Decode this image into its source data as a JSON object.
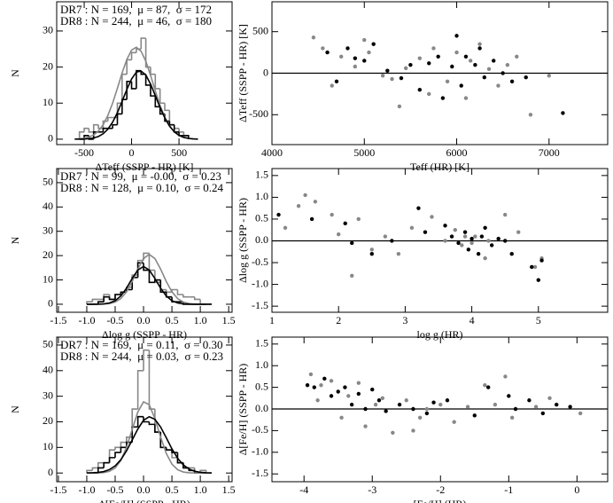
{
  "chart_data": [
    {
      "type": "histogram",
      "xlabel": "ΔTeff (SSPP - HR) [K]",
      "ylabel": "N",
      "annotations": [
        {
          "text": "DR7 : N = 169,  μ = 87,  σ = 172",
          "color": "#000000"
        },
        {
          "text": "DR8 : N = 244,  μ = 46,  σ = 180",
          "color": "#888888"
        }
      ],
      "bins": [
        -550,
        -500,
        -450,
        -400,
        -350,
        -300,
        -250,
        -200,
        -150,
        -100,
        -50,
        0,
        50,
        100,
        150,
        200,
        250,
        300,
        350,
        400,
        450,
        500,
        550,
        600
      ],
      "series": [
        {
          "color": "#888888",
          "values": [
            2,
            3,
            2,
            4,
            3,
            5,
            6,
            6,
            10,
            18,
            22,
            24,
            25,
            28,
            20,
            18,
            14,
            10,
            8,
            4,
            3,
            2,
            1
          ]
        },
        {
          "color": "#000000",
          "values": [
            0,
            1,
            0,
            2,
            2,
            3,
            3,
            4,
            7,
            11,
            16,
            14,
            19,
            18,
            15,
            12,
            9,
            7,
            5,
            4,
            2,
            1,
            1
          ]
        }
      ],
      "fits": [
        {
          "color": "#888888",
          "x": [
            -600,
            -550,
            -500,
            -450,
            -400,
            -350,
            -300,
            -250,
            -200,
            -150,
            -100,
            -50,
            0,
            50,
            100,
            150,
            200,
            250,
            300,
            350,
            400,
            450,
            500,
            550,
            600,
            650,
            700
          ],
          "values": [
            0.04,
            0.11,
            0.26,
            0.57,
            1.18,
            2.27,
            4.02,
            6.6,
            10,
            14.1,
            18.4,
            22.1,
            24.7,
            25.5,
            24.4,
            21.6,
            17.7,
            13.4,
            9.4,
            6.1,
            3.7,
            2.05,
            1.06,
            0.5,
            0.22,
            0.09,
            0.03
          ]
        },
        {
          "color": "#000000",
          "x": [
            -600,
            -550,
            -500,
            -450,
            -400,
            -350,
            -300,
            -250,
            -200,
            -150,
            -100,
            -50,
            0,
            50,
            100,
            150,
            200,
            250,
            300,
            350,
            400,
            450,
            500,
            550,
            600,
            650,
            700
          ],
          "values": [
            0.01,
            0.02,
            0.06,
            0.15,
            0.34,
            0.75,
            1.51,
            2.79,
            4.72,
            7.35,
            10.5,
            13.8,
            16.7,
            18.6,
            18.9,
            17.8,
            15.3,
            12.1,
            8.82,
            5.9,
            3.63,
            2.05,
            1.06,
            0.51,
            0.22,
            0.09,
            0.03
          ]
        }
      ],
      "xlim": [
        -790,
        1060
      ],
      "xticks": [
        -500,
        0,
        500
      ],
      "ylim": [
        -1.5,
        38.1
      ],
      "yticks": [
        0,
        10,
        20,
        30
      ]
    },
    {
      "type": "scatter",
      "xlabel": "Teff (HR) [K]",
      "ylabel": "ΔTeff (SSPP - HR) [K]",
      "reference_line": 0,
      "series": [
        {
          "color": "#888888",
          "x": [
            4450,
            4550,
            4650,
            4750,
            4900,
            5000,
            5050,
            5200,
            5300,
            5380,
            5450,
            5600,
            5700,
            5750,
            5900,
            6000,
            6100,
            6150,
            6250,
            6350,
            6450,
            6550,
            6650,
            6800,
            7000
          ],
          "values": [
            430,
            300,
            -150,
            200,
            80,
            400,
            250,
            -30,
            -70,
            -400,
            60,
            180,
            -250,
            300,
            -100,
            250,
            -300,
            150,
            350,
            50,
            -150,
            100,
            200,
            -500,
            -30
          ]
        },
        {
          "color": "#000000",
          "x": [
            4600,
            4700,
            4820,
            4900,
            5000,
            5100,
            5250,
            5400,
            5500,
            5600,
            5700,
            5800,
            5850,
            5950,
            6000,
            6050,
            6100,
            6200,
            6250,
            6300,
            6400,
            6500,
            6600,
            6750,
            7150
          ],
          "values": [
            250,
            -100,
            300,
            180,
            150,
            350,
            30,
            -60,
            100,
            -200,
            120,
            200,
            -300,
            80,
            450,
            -150,
            200,
            100,
            300,
            -50,
            150,
            0,
            -100,
            -50,
            -480
          ]
        }
      ],
      "xlim": [
        4000,
        7635
      ],
      "xticks": [
        4000,
        5000,
        6000,
        7000
      ],
      "ylim": [
        -860,
        860
      ],
      "yticks": [
        -500,
        0,
        500
      ]
    },
    {
      "type": "histogram",
      "xlabel": "Δlog g (SSPP - HR)",
      "ylabel": "N",
      "annotations": [
        {
          "text": "DR7 : N = 99,  μ = -0.00,  σ = 0.23",
          "color": "#000000"
        },
        {
          "text": "DR8 : N = 128,  μ = 0.10,  σ = 0.24",
          "color": "#888888"
        }
      ],
      "bins": [
        -1.0,
        -0.9,
        -0.8,
        -0.7,
        -0.6,
        -0.5,
        -0.4,
        -0.3,
        -0.2,
        -0.1,
        0,
        0.1,
        0.2,
        0.3,
        0.4,
        0.5,
        0.6,
        0.7,
        0.8,
        0.9,
        1.0,
        1.1
      ],
      "series": [
        {
          "color": "#888888",
          "values": [
            1,
            2,
            2,
            4,
            2,
            4,
            5,
            7,
            12,
            18,
            21,
            14,
            9,
            6,
            5,
            6,
            4,
            3,
            3,
            2,
            0
          ]
        },
        {
          "color": "#000000",
          "values": [
            0,
            0,
            1,
            3,
            2,
            4,
            5,
            6,
            11,
            17,
            14,
            9,
            10,
            5,
            3,
            1,
            1,
            0,
            0,
            0,
            0
          ]
        }
      ],
      "fits": [
        {
          "color": "#888888",
          "x": [
            -1.0,
            -0.9,
            -0.8,
            -0.7,
            -0.6,
            -0.5,
            -0.4,
            -0.3,
            -0.2,
            -0.1,
            0,
            0.1,
            0.2,
            0.3,
            0.4,
            0.5,
            0.6,
            0.7,
            0.8,
            0.9,
            1.0,
            1.1,
            1.2
          ],
          "values": [
            0,
            0,
            0.02,
            0.08,
            0.29,
            0.9,
            2.34,
            5.11,
            9.39,
            14.5,
            18.8,
            20.5,
            18.8,
            14.5,
            9.39,
            5.11,
            2.34,
            0.9,
            0.29,
            0.08,
            0.02,
            0,
            0
          ]
        },
        {
          "color": "#000000",
          "x": [
            -1.0,
            -0.9,
            -0.8,
            -0.7,
            -0.6,
            -0.5,
            -0.4,
            -0.3,
            -0.2,
            -0.1,
            0,
            0.1,
            0.2,
            0.3,
            0.4,
            0.5,
            0.6,
            0.7,
            0.8,
            0.9,
            1.0,
            1.1,
            1.2
          ],
          "values": [
            0,
            0.01,
            0.04,
            0.15,
            0.52,
            1.46,
            3.42,
            6.62,
            10.6,
            14.1,
            15.5,
            14.1,
            10.6,
            6.62,
            3.42,
            1.46,
            0.52,
            0.15,
            0.04,
            0.01,
            0,
            0,
            0
          ]
        }
      ],
      "xlim": [
        -1.53,
        1.56
      ],
      "xticks": [
        -1.5,
        {
          "value": -1,
          "label": "-1.0"
        },
        -0.5,
        {
          "value": 0,
          "label": "0.0"
        },
        0.5,
        {
          "value": 1,
          "label": "1.0"
        },
        1.5
      ],
      "ylim": [
        -3.3,
        55.8
      ],
      "yticks": [
        0,
        10,
        20,
        30,
        40,
        50
      ]
    },
    {
      "type": "scatter",
      "xlabel": "log g (HR)",
      "ylabel": "Δlog g (SSPP - HR)",
      "reference_line": 0,
      "series": [
        {
          "color": "#888888",
          "x": [
            1.2,
            1.4,
            1.5,
            1.65,
            1.9,
            2.0,
            2.2,
            2.3,
            2.5,
            2.7,
            2.9,
            3.1,
            3.4,
            3.6,
            3.75,
            3.85,
            3.9,
            4.0,
            4.05,
            4.2,
            4.25,
            4.5,
            4.7,
            4.95,
            5.05
          ],
          "values": [
            0.3,
            0.8,
            1.05,
            0.9,
            0.6,
            0.15,
            -0.8,
            0.5,
            -0.2,
            0.1,
            -0.3,
            0.3,
            0.55,
            0.0,
            0.25,
            -0.1,
            0.1,
            -0.05,
            0.1,
            -0.4,
            0.0,
            0.6,
            0.2,
            -0.6,
            -0.4
          ]
        },
        {
          "color": "#000000",
          "x": [
            1.1,
            1.6,
            2.1,
            2.2,
            2.5,
            2.8,
            3.2,
            3.3,
            3.6,
            3.7,
            3.8,
            3.9,
            3.95,
            4.0,
            4.1,
            4.15,
            4.2,
            4.3,
            4.4,
            4.5,
            4.6,
            4.9,
            5.0,
            5.05
          ],
          "values": [
            0.6,
            0.5,
            0.4,
            -0.05,
            -0.3,
            0.0,
            0.75,
            0.2,
            0.35,
            0.1,
            -0.05,
            0.2,
            -0.2,
            0.05,
            -0.3,
            0.1,
            0.3,
            -0.1,
            0.05,
            0.0,
            -0.3,
            -0.6,
            -0.9,
            -0.45
          ]
        }
      ],
      "xlim": [
        1,
        6.04
      ],
      "xticks": [
        1,
        2,
        3,
        4,
        5
      ],
      "ylim": [
        -1.64,
        1.66
      ],
      "yticks": [
        -1.5,
        {
          "value": -1,
          "label": "-1.0"
        },
        -0.5,
        {
          "value": 0,
          "label": "0.0"
        },
        0.5,
        {
          "value": 1,
          "label": "1.0"
        },
        1.5
      ]
    },
    {
      "type": "histogram",
      "xlabel": "Δ[Fe/H] (SSPP - HR)",
      "ylabel": "N",
      "annotations": [
        {
          "text": "DR7 : N = 169,  μ = 0.11,  σ = 0.30",
          "color": "#000000"
        },
        {
          "text": "DR8 : N = 244,  μ = 0.03,  σ = 0.23",
          "color": "#888888"
        }
      ],
      "bins": [
        -1.0,
        -0.9,
        -0.8,
        -0.7,
        -0.6,
        -0.5,
        -0.4,
        -0.3,
        -0.2,
        -0.1,
        0,
        0.1,
        0.2,
        0.3,
        0.4,
        0.5,
        0.6,
        0.7,
        0.8,
        0.9,
        1.0,
        1.1
      ],
      "series": [
        {
          "color": "#888888",
          "values": [
            1,
            2,
            4,
            4,
            9,
            10,
            12,
            14,
            25,
            40,
            48,
            25,
            16,
            10,
            9,
            6,
            4,
            2,
            2,
            0,
            1
          ]
        },
        {
          "color": "#000000",
          "values": [
            0,
            0,
            2,
            4,
            6,
            8,
            10,
            12,
            18,
            22,
            20,
            19,
            16,
            10,
            9,
            8,
            4,
            2,
            1,
            0,
            0
          ]
        }
      ],
      "fits": [
        {
          "color": "#888888",
          "x": [
            -1.0,
            -0.9,
            -0.8,
            -0.7,
            -0.6,
            -0.5,
            -0.4,
            -0.3,
            -0.2,
            -0.1,
            0,
            0.1,
            0.2,
            0.3,
            0.4,
            0.5,
            0.6,
            0.7,
            0.8,
            0.9,
            1.0,
            1.1,
            1.2
          ],
          "values": [
            0,
            0.01,
            0.04,
            0.18,
            0.66,
            1.97,
            4.88,
            10,
            17,
            23.9,
            27.8,
            26.7,
            21.3,
            14.1,
            7.67,
            3.47,
            1.3,
            0.4,
            0.1,
            0.02,
            0,
            0,
            0
          ]
        },
        {
          "color": "#000000",
          "x": [
            -1.0,
            -0.9,
            -0.8,
            -0.7,
            -0.6,
            -0.5,
            -0.4,
            -0.3,
            -0.2,
            -0.1,
            0,
            0.1,
            0.2,
            0.3,
            0.4,
            0.5,
            0.6,
            0.7,
            0.8,
            0.9,
            1.0,
            1.1,
            1.2
          ],
          "values": [
            0.02,
            0.08,
            0.22,
            0.57,
            1.34,
            2.79,
            5.19,
            8.65,
            12.9,
            17.2,
            20.6,
            22,
            21,
            18,
            13.8,
            9.45,
            5.8,
            3.18,
            1.56,
            0.69,
            0.27,
            0.09,
            0.03
          ]
        }
      ],
      "xlim": [
        -1.53,
        1.56
      ],
      "xticks": [
        -1.5,
        {
          "value": -1,
          "label": "-1.0"
        },
        -0.5,
        {
          "value": 0,
          "label": "0.0"
        },
        0.5,
        {
          "value": 1,
          "label": "1.0"
        },
        1.5
      ],
      "ylim": [
        -3.4,
        53.1
      ],
      "yticks": [
        0,
        10,
        20,
        30,
        40,
        50
      ]
    },
    {
      "type": "scatter",
      "xlabel": "[Fe/H] (HR)",
      "ylabel": "Δ[Fe/H] (SSPP - HR)",
      "reference_line": 0,
      "series": [
        {
          "color": "#888888",
          "x": [
            -3.9,
            -3.8,
            -3.75,
            -3.6,
            -3.45,
            -3.35,
            -3.2,
            -3.1,
            -2.95,
            -2.85,
            -2.7,
            -2.5,
            -2.4,
            -2.3,
            -2.2,
            -2.0,
            -1.8,
            -1.6,
            -1.35,
            -1.2,
            -1.05,
            -0.95,
            -0.6,
            -0.4,
            0.05
          ],
          "values": [
            0.8,
            0.2,
            0.55,
            0.65,
            -0.2,
            0.3,
            0.6,
            -0.4,
            0.1,
            0.25,
            -0.55,
            0.2,
            -0.5,
            -0.2,
            0.0,
            0.1,
            -0.3,
            0.05,
            0.55,
            0.1,
            0.75,
            -0.2,
            0.05,
            0.25,
            -0.1
          ]
        },
        {
          "color": "#000000",
          "x": [
            -3.95,
            -3.85,
            -3.7,
            -3.6,
            -3.5,
            -3.4,
            -3.3,
            -3.2,
            -3.1,
            -3.0,
            -2.9,
            -2.8,
            -2.6,
            -2.4,
            -2.2,
            -2.1,
            -1.9,
            -1.5,
            -1.3,
            -1.0,
            -0.9,
            -0.7,
            -0.5,
            -0.3,
            -0.1
          ],
          "values": [
            0.55,
            0.5,
            0.7,
            0.3,
            0.4,
            0.5,
            0.1,
            0.35,
            0.0,
            0.45,
            0.2,
            -0.05,
            0.1,
            0.0,
            -0.1,
            0.15,
            0.2,
            -0.15,
            0.5,
            0.3,
            0.0,
            0.2,
            -0.1,
            0.1,
            0.05
          ]
        }
      ],
      "xlim": [
        -4.47,
        0.45
      ],
      "xticks": [
        -4,
        -3,
        -2,
        -1,
        0
      ],
      "ylim": [
        -1.68,
        1.66
      ],
      "yticks": [
        -1.5,
        {
          "value": -1,
          "label": "-1.0"
        },
        -0.5,
        {
          "value": 0,
          "label": "0.0"
        },
        0.5,
        {
          "value": 1,
          "label": "1.0"
        },
        1.5
      ]
    }
  ]
}
